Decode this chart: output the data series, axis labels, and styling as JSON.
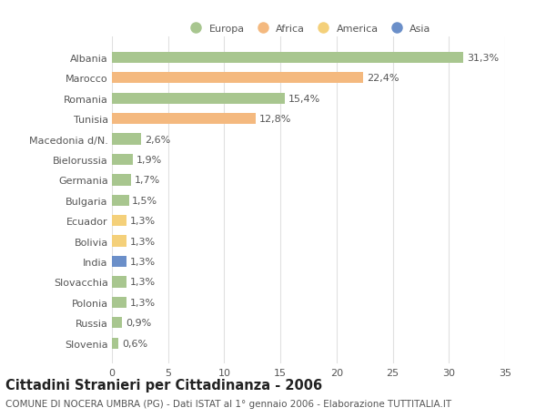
{
  "categories": [
    "Albania",
    "Marocco",
    "Romania",
    "Tunisia",
    "Macedonia d/N.",
    "Bielorussia",
    "Germania",
    "Bulgaria",
    "Ecuador",
    "Bolivia",
    "India",
    "Slovacchia",
    "Polonia",
    "Russia",
    "Slovenia"
  ],
  "values": [
    31.3,
    22.4,
    15.4,
    12.8,
    2.6,
    1.9,
    1.7,
    1.5,
    1.3,
    1.3,
    1.3,
    1.3,
    1.3,
    0.9,
    0.6
  ],
  "labels": [
    "31,3%",
    "22,4%",
    "15,4%",
    "12,8%",
    "2,6%",
    "1,9%",
    "1,7%",
    "1,5%",
    "1,3%",
    "1,3%",
    "1,3%",
    "1,3%",
    "1,3%",
    "0,9%",
    "0,6%"
  ],
  "colors": [
    "#a8c68f",
    "#f4b97f",
    "#a8c68f",
    "#f4b97f",
    "#a8c68f",
    "#a8c68f",
    "#a8c68f",
    "#a8c68f",
    "#f4d07a",
    "#f4d07a",
    "#6b8fc9",
    "#a8c68f",
    "#a8c68f",
    "#a8c68f",
    "#a8c68f"
  ],
  "legend_labels": [
    "Europa",
    "Africa",
    "America",
    "Asia"
  ],
  "legend_colors": [
    "#a8c68f",
    "#f4b97f",
    "#f4d07a",
    "#6b8fc9"
  ],
  "title": "Cittadini Stranieri per Cittadinanza - 2006",
  "subtitle": "COMUNE DI NOCERA UMBRA (PG) - Dati ISTAT al 1° gennaio 2006 - Elaborazione TUTTITALIA.IT",
  "xlim": [
    0,
    35
  ],
  "xticks": [
    0,
    5,
    10,
    15,
    20,
    25,
    30,
    35
  ],
  "background_color": "#ffffff",
  "grid_color": "#e0e0e0",
  "label_fontsize": 8,
  "tick_fontsize": 8,
  "title_fontsize": 10.5,
  "subtitle_fontsize": 7.5
}
